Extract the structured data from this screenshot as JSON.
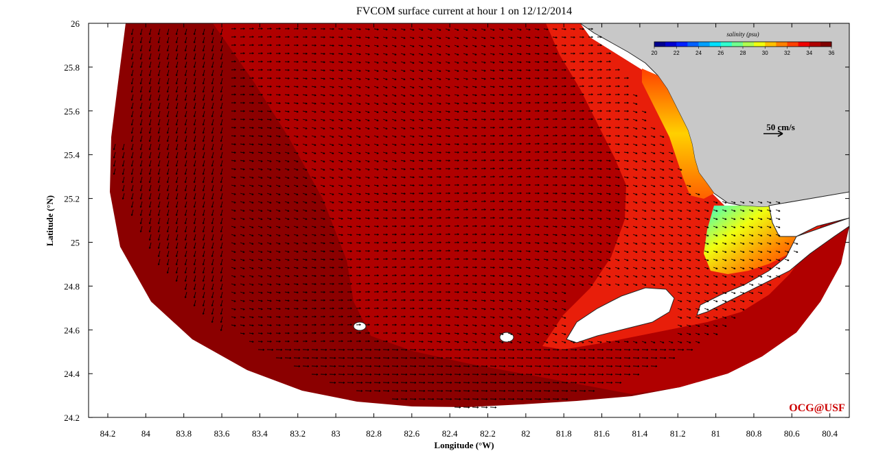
{
  "title": "FVCOM surface current at hour 1 on 12/12/2014",
  "xlabel": "Longitude (°W)",
  "ylabel": "Latitude (°N)",
  "x_ticks": [
    "84.2",
    "84",
    "83.8",
    "83.6",
    "83.4",
    "83.2",
    "83",
    "82.8",
    "82.6",
    "82.4",
    "82.2",
    "82",
    "81.8",
    "81.6",
    "81.4",
    "81.2",
    "81",
    "80.8",
    "80.6",
    "80.4"
  ],
  "y_ticks": [
    "26",
    "25.8",
    "25.6",
    "25.4",
    "25.2",
    "25",
    "24.8",
    "24.6",
    "24.4",
    "24.2"
  ],
  "colorbar": {
    "label": "salinity (psu)",
    "ticks": [
      "20",
      "22",
      "24",
      "26",
      "28",
      "30",
      "32",
      "34",
      "36"
    ],
    "colors": [
      "#00008f",
      "#0000cf",
      "#0020ff",
      "#0060ff",
      "#00a0ff",
      "#00e0ff",
      "#30ffcf",
      "#70ff8f",
      "#b0ff50",
      "#f0ff10",
      "#ffc000",
      "#ff8000",
      "#ff4000",
      "#ef0000",
      "#af0000",
      "#800000"
    ]
  },
  "reference_vector": {
    "label": "50 cm/s"
  },
  "credit": "OCG@USF",
  "colors": {
    "land": "#c8c8c8",
    "deep_water": "#8b0000",
    "mid_water": "#b00000",
    "shelf_water": "#ee2a10",
    "vector": "#000000"
  },
  "chart_data": {
    "type": "map",
    "field": "surface salinity with current vectors",
    "x_range_lon_W": [
      84.3,
      80.4
    ],
    "y_range_lat_N": [
      24.2,
      26.0
    ],
    "salinity_range_psu": [
      20,
      36
    ],
    "reference_speed": "50 cm/s"
  }
}
